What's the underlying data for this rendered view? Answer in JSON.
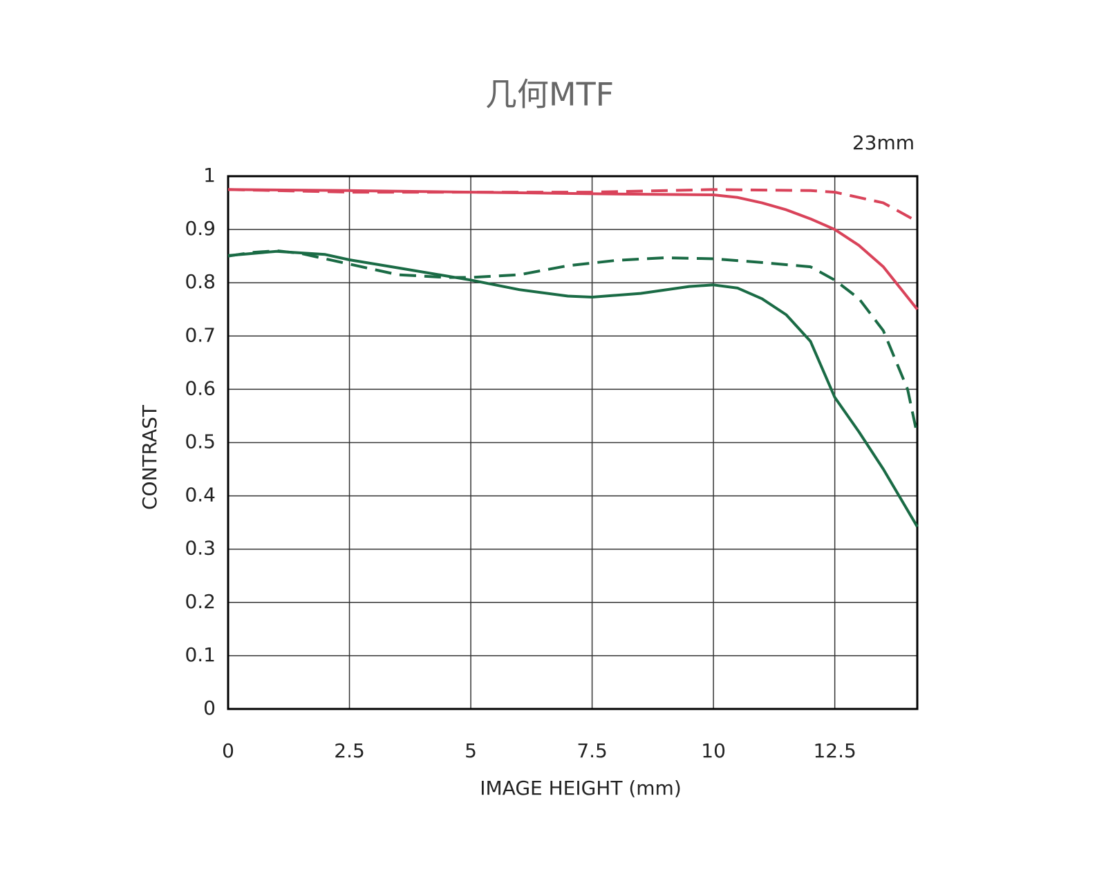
{
  "chart_data": {
    "type": "line",
    "title": "几何MTF",
    "annotation": "23mm",
    "x_label": "IMAGE HEIGHT (mm)",
    "y_label": "CONTRAST",
    "xlim": [
      0,
      14.2
    ],
    "ylim": [
      0,
      1
    ],
    "xticks": [
      0,
      2.5,
      5,
      7.5,
      10,
      12.5
    ],
    "yticks": [
      0,
      0.1,
      0.2,
      0.3,
      0.4,
      0.5,
      0.6,
      0.7,
      0.8,
      0.9,
      1
    ],
    "grid": true,
    "series": [
      {
        "color": "#d9435a",
        "line_style": "solid",
        "x": [
          0,
          2.5,
          5,
          7.5,
          10,
          10.5,
          11,
          11.5,
          12,
          12.5,
          13,
          13.5,
          14.2
        ],
        "values": [
          0.975,
          0.973,
          0.97,
          0.967,
          0.965,
          0.96,
          0.95,
          0.937,
          0.92,
          0.9,
          0.87,
          0.83,
          0.75
        ]
      },
      {
        "color": "#d9435a",
        "line_style": "dashed",
        "x": [
          0,
          2.5,
          5,
          7.5,
          10,
          12,
          12.5,
          13,
          13.5,
          14.2
        ],
        "values": [
          0.975,
          0.97,
          0.97,
          0.97,
          0.975,
          0.973,
          0.97,
          0.96,
          0.95,
          0.915
        ]
      },
      {
        "color": "#1a6b45",
        "line_style": "solid",
        "x": [
          0,
          1,
          2,
          2.5,
          3.5,
          5,
          6,
          7,
          7.5,
          8.5,
          9.5,
          10,
          10.5,
          11,
          11.5,
          12,
          12.5,
          13,
          13.5,
          14.2
        ],
        "values": [
          0.851,
          0.859,
          0.853,
          0.843,
          0.828,
          0.805,
          0.787,
          0.775,
          0.773,
          0.78,
          0.793,
          0.796,
          0.79,
          0.77,
          0.74,
          0.69,
          0.585,
          0.52,
          0.45,
          0.342
        ]
      },
      {
        "color": "#1a6b45",
        "line_style": "dashed",
        "x": [
          0,
          0.5,
          1,
          1.5,
          2.5,
          3.5,
          4.5,
          5,
          6,
          7,
          8,
          9,
          10,
          11,
          12,
          12.5,
          13,
          13.5,
          14,
          14.2
        ],
        "values": [
          0.85,
          0.857,
          0.86,
          0.855,
          0.835,
          0.815,
          0.81,
          0.81,
          0.815,
          0.832,
          0.842,
          0.847,
          0.845,
          0.838,
          0.83,
          0.805,
          0.77,
          0.71,
          0.6,
          0.514
        ]
      }
    ]
  }
}
